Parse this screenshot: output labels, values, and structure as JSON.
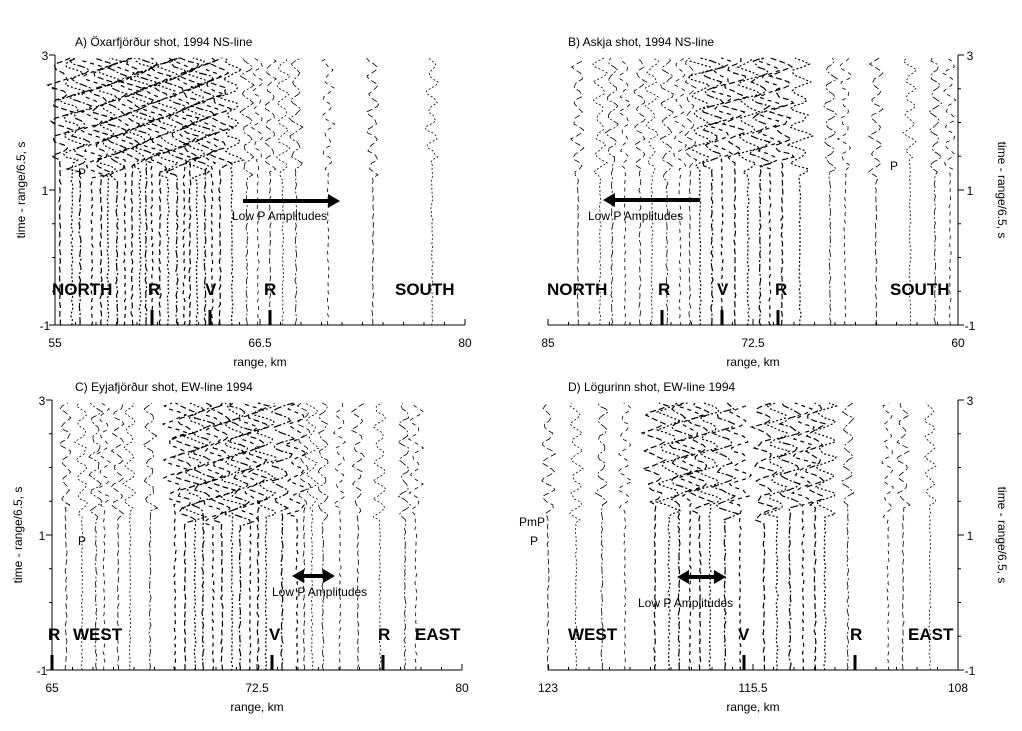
{
  "panels": [
    {
      "title": "A) Öxarfjörður shot, 1994 NS-line",
      "xlabel": "range, km",
      "ylabel": "time - range/6.5, s",
      "xticks": [
        "55",
        "66.5",
        "80"
      ],
      "yticks": [
        "3",
        "1",
        "-1"
      ],
      "yaxis": "left",
      "labels": [
        {
          "t": "NORTH"
        },
        {
          "t": "R"
        },
        {
          "t": "V"
        },
        {
          "t": "R"
        },
        {
          "t": "SOUTH"
        }
      ],
      "phases": [
        "P"
      ],
      "annotation": "Low P Amplitudes",
      "arrow": "right"
    },
    {
      "title": "B) Askja shot, 1994 NS-line",
      "xlabel": "range, km",
      "ylabel": "time - range/6.5, s",
      "xticks": [
        "85",
        "72.5",
        "60"
      ],
      "yticks": [
        "3",
        "1",
        "-1"
      ],
      "yaxis": "right",
      "labels": [
        {
          "t": "NORTH"
        },
        {
          "t": "R"
        },
        {
          "t": "V"
        },
        {
          "t": "R"
        },
        {
          "t": "SOUTH"
        }
      ],
      "phases": [
        "P"
      ],
      "annotation": "Low P Amplitudes",
      "arrow": "left"
    },
    {
      "title": "C) Eyjafjörður shot, EW-line 1994",
      "xlabel": "range, km",
      "ylabel": "time - range/6.5, s",
      "xticks": [
        "65",
        "72.5",
        "80"
      ],
      "yticks": [
        "3",
        "1",
        "-1"
      ],
      "yaxis": "left",
      "labels": [
        {
          "t": "R"
        },
        {
          "t": "WEST"
        },
        {
          "t": "V"
        },
        {
          "t": "R"
        },
        {
          "t": "EAST"
        }
      ],
      "phases": [
        "P"
      ],
      "annotation": "Low P Amplitudes",
      "arrow": "both"
    },
    {
      "title": "D) Lögurinn shot, EW-line 1994",
      "xlabel": "range, km",
      "ylabel": "time - range/6.5, s",
      "xticks": [
        "123",
        "115.5",
        "108"
      ],
      "yticks": [
        "3",
        "1",
        "-1"
      ],
      "yaxis": "right",
      "labels": [
        {
          "t": "WEST"
        },
        {
          "t": "V"
        },
        {
          "t": "R"
        },
        {
          "t": "EAST"
        }
      ],
      "phases": [
        "PmP",
        "P"
      ],
      "annotation": "Low P Amplitudes",
      "arrow": "both"
    }
  ]
}
